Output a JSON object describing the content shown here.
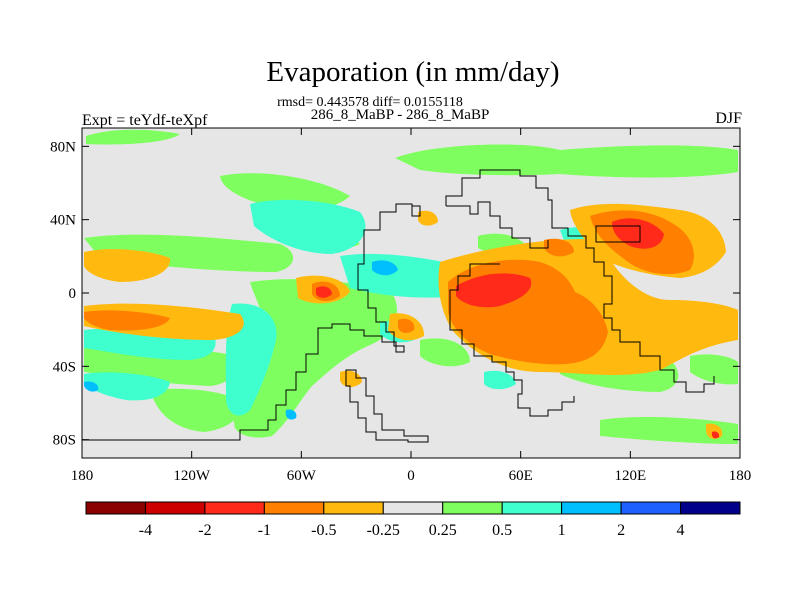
{
  "title": "Evaporation (in mm/day)",
  "stats_line": "rmsd= 0.443578 diff= 0.0155118",
  "subtitle": "286_8_MaBP - 286_8_MaBP",
  "expt_label": "Expt = teYdf-teXpf",
  "season": "DJF",
  "map": {
    "lon_ticks": [
      {
        "lon": -180,
        "label": "180"
      },
      {
        "lon": -120,
        "label": "120W"
      },
      {
        "lon": -60,
        "label": "60W"
      },
      {
        "lon": 0,
        "label": "0"
      },
      {
        "lon": 60,
        "label": "60E"
      },
      {
        "lon": 120,
        "label": "120E"
      },
      {
        "lon": 180,
        "label": "180"
      }
    ],
    "lat_ticks": [
      {
        "lat": 80,
        "label": "80N"
      },
      {
        "lat": 40,
        "label": "40N"
      },
      {
        "lat": 0,
        "label": "0"
      },
      {
        "lat": -40,
        "label": "40S"
      },
      {
        "lat": -80,
        "label": "80S"
      }
    ],
    "lon_range": [
      -180,
      180
    ],
    "lat_range": [
      -90,
      90
    ]
  },
  "colorbar": {
    "colors": [
      "#8b0000",
      "#cd0000",
      "#ff2a1a",
      "#ff7f00",
      "#ffb90f",
      "#e6e6e6",
      "#7fff5f",
      "#3fffcf",
      "#00bfff",
      "#1e5fff",
      "#00008b"
    ],
    "labels": [
      "-4",
      "-2",
      "-1",
      "-0.5",
      "-0.25",
      "0.25",
      "0.5",
      "1",
      "2",
      "4"
    ]
  }
}
